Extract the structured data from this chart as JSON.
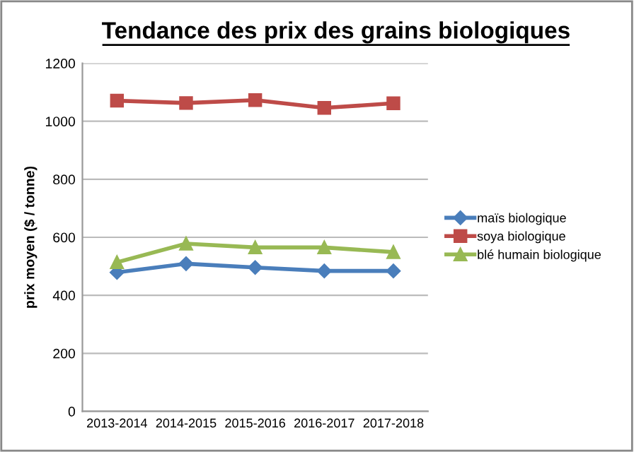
{
  "chart_data": {
    "type": "line",
    "title": "Tendance des prix des grains biologiques",
    "ylabel": "prix moyen ($ / tonne)",
    "categories": [
      "2013-2014",
      "2014-2015",
      "2015-2016",
      "2016-2017",
      "2017-2018"
    ],
    "series": [
      {
        "name": "maïs biologique",
        "color": "#4a7ebb",
        "marker": "diamond",
        "values": [
          479,
          509,
          496,
          484,
          484
        ]
      },
      {
        "name": "soya biologique",
        "color": "#be4b48",
        "marker": "square",
        "values": [
          1071,
          1063,
          1073,
          1046,
          1062
        ]
      },
      {
        "name": "blé humain biologique",
        "color": "#98b954",
        "marker": "triangle",
        "values": [
          514,
          578,
          565,
          565,
          549
        ]
      }
    ],
    "ylim": [
      0,
      1200
    ],
    "yticks": [
      0,
      200,
      400,
      600,
      800,
      1000,
      1200
    ],
    "grid": "y",
    "legend": "right"
  }
}
